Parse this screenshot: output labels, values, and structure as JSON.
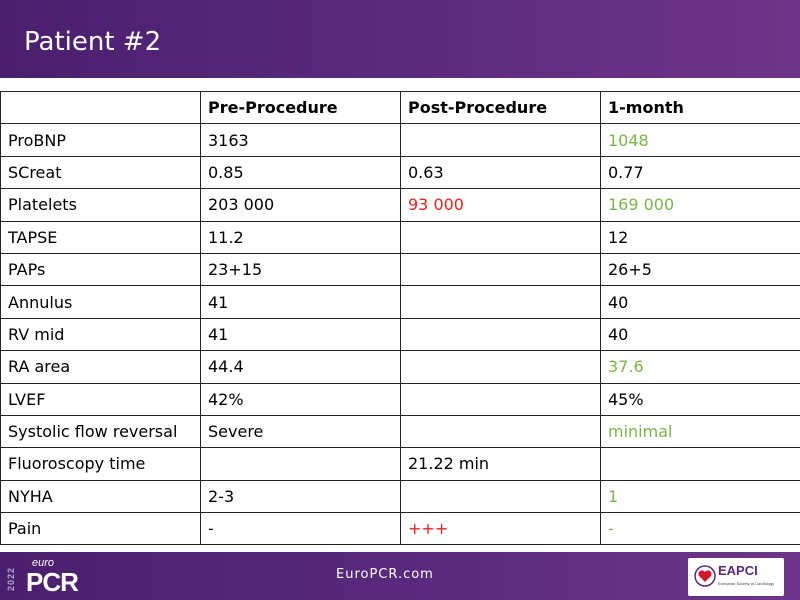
{
  "slide": {
    "title": "Patient #2"
  },
  "table": {
    "headers": [
      "",
      "Pre-Procedure",
      "Post-Procedure",
      "1-month"
    ],
    "rows": [
      {
        "cells": [
          "ProBNP",
          "3163",
          "",
          "1048"
        ],
        "colors": [
          "",
          "",
          "",
          "green"
        ]
      },
      {
        "cells": [
          "SCreat",
          "0.85",
          "0.63",
          "0.77"
        ],
        "colors": [
          "",
          "",
          "",
          ""
        ]
      },
      {
        "cells": [
          "Platelets",
          "203 000",
          "93 000",
          "169 000"
        ],
        "colors": [
          "",
          "",
          "red",
          "green"
        ]
      },
      {
        "cells": [
          "TAPSE",
          "11.2",
          "",
          "12"
        ],
        "colors": [
          "",
          "",
          "",
          ""
        ]
      },
      {
        "cells": [
          "PAPs",
          "23+15",
          "",
          "26+5"
        ],
        "colors": [
          "",
          "",
          "",
          ""
        ]
      },
      {
        "cells": [
          "Annulus",
          "41",
          "",
          "40"
        ],
        "colors": [
          "",
          "",
          "",
          ""
        ]
      },
      {
        "cells": [
          "RV mid",
          "41",
          "",
          "40"
        ],
        "colors": [
          "",
          "",
          "",
          ""
        ]
      },
      {
        "cells": [
          "RA area",
          "44.4",
          "",
          "37.6"
        ],
        "colors": [
          "",
          "",
          "",
          "green"
        ]
      },
      {
        "cells": [
          "LVEF",
          "42%",
          "",
          "45%"
        ],
        "colors": [
          "",
          "",
          "",
          ""
        ]
      },
      {
        "cells": [
          "Systolic flow reversal",
          "Severe",
          "",
          "minimal"
        ],
        "colors": [
          "",
          "",
          "",
          "green"
        ]
      },
      {
        "cells": [
          "Fluoroscopy time",
          "",
          "21.22 min",
          ""
        ],
        "colors": [
          "",
          "",
          "",
          ""
        ]
      },
      {
        "cells": [
          "NYHA",
          "2-3",
          "",
          "1"
        ],
        "colors": [
          "",
          "",
          "",
          "green"
        ]
      },
      {
        "cells": [
          "Pain",
          "-",
          "+++",
          "-"
        ],
        "colors": [
          "",
          "",
          "red",
          "green"
        ]
      }
    ]
  },
  "colors": {
    "green": "#7ab648",
    "red": "#e8211d",
    "purple": "#5a2a7e"
  },
  "footer": {
    "logo_year": "2022",
    "logo_euro": "euro",
    "logo_pcr": "PCR",
    "url": "EuroPCR.com",
    "partner_name": "EAPCI",
    "partner_sub": "European Society of Cardiology"
  }
}
